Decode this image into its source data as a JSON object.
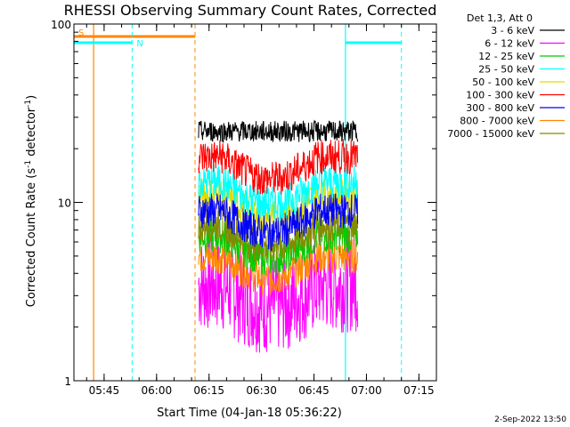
{
  "chart_data": {
    "type": "line",
    "title": "RHESSI Observing Summary Count Rates, Corrected",
    "xlabel": "Start Time (04-Jan-18 05:36:22)",
    "ylabel": "Corrected Count Rate (s",
    "ylabel_sup1": "-1",
    "ylabel_mid": " detector",
    "ylabel_sup2": "-1",
    "ylabel_end": ")",
    "date_stamp": "2-Sep-2022 13:50",
    "y_scale": "log",
    "ylim": [
      1,
      100
    ],
    "xlim": [
      "05:36:22",
      "07:20:00"
    ],
    "x_ticks": [
      "05:45",
      "06:00",
      "06:15",
      "06:30",
      "06:45",
      "07:00",
      "07:15"
    ],
    "y_ticks": [
      "1",
      "10",
      "100"
    ],
    "legend_title": "Det 1,3, Att 0",
    "legend_placement": "right",
    "data_window": [
      "06:12:00",
      "06:57:30"
    ],
    "series": [
      {
        "name": "3 - 6 keV",
        "color": "#000000",
        "level": 25
      },
      {
        "name": "6 - 12 keV",
        "color": "#ff00ff",
        "level": 3.5
      },
      {
        "name": "12 - 25 keV",
        "color": "#00cc00",
        "level": 6.5
      },
      {
        "name": "25 - 50 keV",
        "color": "#00ffff",
        "level": 13
      },
      {
        "name": "50 - 100 keV",
        "color": "#dddd00",
        "level": 11
      },
      {
        "name": "100 - 300 keV",
        "color": "#ff0000",
        "level": 18
      },
      {
        "name": "300 - 800 keV",
        "color": "#0000ff",
        "level": 9
      },
      {
        "name": "800 - 7000 keV",
        "color": "#ff8800",
        "level": 5
      },
      {
        "name": "7000 - 15000 keV",
        "color": "#888800",
        "level": 7.5
      }
    ],
    "annotations": {
      "saa": {
        "label": "S",
        "color": "#ff8800",
        "bar": [
          "05:36:22",
          "06:11:00"
        ],
        "line": "05:42:00",
        "dashed": "06:11:00"
      },
      "night": {
        "label": "N",
        "color": "#00ffff",
        "bars": [
          [
            "05:36:22",
            "05:53:00"
          ],
          [
            "06:54:00",
            "07:10:00"
          ]
        ],
        "lines": [
          "06:54:00"
        ],
        "dashed": [
          "05:53:00",
          "07:10:00"
        ]
      }
    }
  }
}
